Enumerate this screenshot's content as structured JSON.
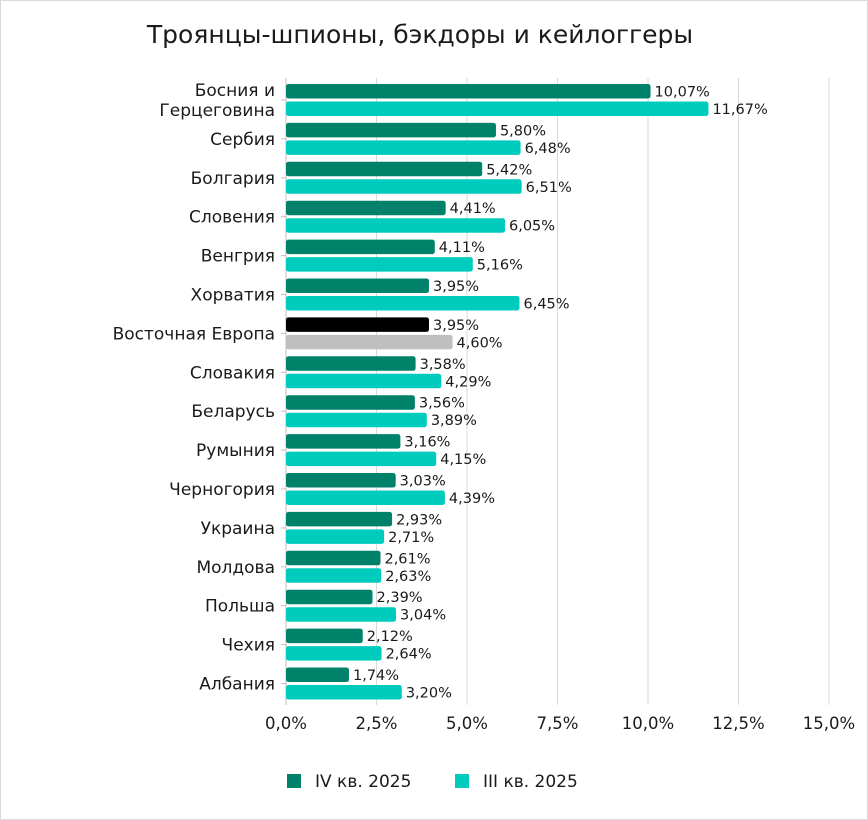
{
  "chart_data": {
    "type": "bar",
    "orientation": "horizontal",
    "title": "Троянцы-шпионы, бэкдоры и кейлоггеры",
    "categories": [
      [
        "Босния и",
        "Герцеговина"
      ],
      [
        "Сербия"
      ],
      [
        "Болгария"
      ],
      [
        "Словения"
      ],
      [
        "Венгрия"
      ],
      [
        "Хорватия"
      ],
      [
        "Восточная Европа"
      ],
      [
        "Словакия"
      ],
      [
        "Беларусь"
      ],
      [
        "Румыния"
      ],
      [
        "Черногория"
      ],
      [
        "Украина"
      ],
      [
        "Молдова"
      ],
      [
        "Польша"
      ],
      [
        "Чехия"
      ],
      [
        "Албания"
      ]
    ],
    "series": [
      {
        "name": "IV кв. 2025",
        "color": "#00816a",
        "values": [
          10.07,
          5.8,
          5.42,
          4.41,
          4.11,
          3.95,
          3.95,
          3.58,
          3.56,
          3.16,
          3.03,
          2.93,
          2.61,
          2.39,
          2.12,
          1.74
        ],
        "labels": [
          "10,07%",
          "5,80%",
          "5,42%",
          "4,41%",
          "4,11%",
          "3,95%",
          "3,95%",
          "3,58%",
          "3,56%",
          "3,16%",
          "3,03%",
          "2,93%",
          "2,61%",
          "2,39%",
          "2,12%",
          "1,74%"
        ]
      },
      {
        "name": "III кв. 2025",
        "color": "#00ccbe",
        "values": [
          11.67,
          6.48,
          6.51,
          6.05,
          5.16,
          6.45,
          4.6,
          4.29,
          3.89,
          4.15,
          4.39,
          2.71,
          2.63,
          3.04,
          2.64,
          3.2
        ],
        "labels": [
          "11,67%",
          "6,48%",
          "6,51%",
          "6,05%",
          "5,16%",
          "6,45%",
          "4,60%",
          "4,29%",
          "3,89%",
          "4,15%",
          "4,39%",
          "2,71%",
          "2,63%",
          "3,04%",
          "2,64%",
          "3,20%"
        ]
      }
    ],
    "highlight": {
      "category_index": 6,
      "colors": [
        "#000000",
        "#bfbfbf"
      ]
    },
    "xlim": [
      0,
      15
    ],
    "xticks": [
      0,
      2.5,
      5,
      7.5,
      10,
      12.5,
      15
    ],
    "xtick_labels": [
      "0,0%",
      "2,5%",
      "5,0%",
      "7,5%",
      "10,0%",
      "12,5%",
      "15,0%"
    ],
    "xlabel": "",
    "ylabel": "",
    "grid": true,
    "legend_position": "bottom"
  }
}
